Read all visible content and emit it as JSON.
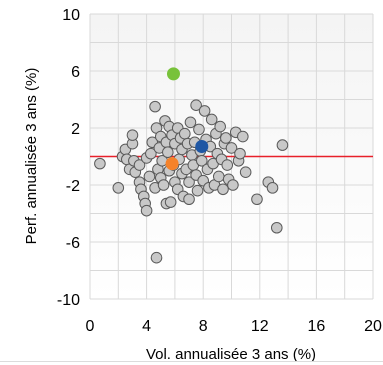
{
  "chart_data": {
    "type": "scatter",
    "title": "",
    "xlabel": "Vol. annualisée 3 ans (%)",
    "ylabel": "Perf. annualisée 3 ans (%)",
    "xlim": [
      0,
      20
    ],
    "ylim": [
      -10,
      10
    ],
    "xticks": [
      "0",
      "4",
      "8",
      "12",
      "16",
      "20"
    ],
    "yticks": [
      "10",
      "6",
      "2",
      "-2",
      "-6",
      "-10"
    ],
    "grid": true,
    "reference_line": {
      "y": 0,
      "color": "#e8202a"
    },
    "colors": {
      "peer": "#c8c8c8",
      "peer_stroke": "#5a5a5a",
      "highlight_green": "#78c23a",
      "highlight_blue": "#1f57a4",
      "highlight_orange": "#f5822a"
    },
    "series": [
      {
        "role": "peers",
        "points": [
          [
            0.7,
            -0.5
          ],
          [
            2.0,
            -2.2
          ],
          [
            2.3,
            0.0
          ],
          [
            2.5,
            0.5
          ],
          [
            2.6,
            -0.2
          ],
          [
            2.8,
            -0.9
          ],
          [
            3.0,
            0.9
          ],
          [
            3.0,
            1.5
          ],
          [
            3.1,
            -0.3
          ],
          [
            3.2,
            -1.1
          ],
          [
            3.5,
            -1.8
          ],
          [
            3.5,
            -0.6
          ],
          [
            3.6,
            -2.3
          ],
          [
            3.8,
            -2.8
          ],
          [
            3.9,
            -3.3
          ],
          [
            4.0,
            -3.8
          ],
          [
            4.0,
            -0.1
          ],
          [
            4.2,
            -1.4
          ],
          [
            4.3,
            0.2
          ],
          [
            4.4,
            1.0
          ],
          [
            4.6,
            3.5
          ],
          [
            4.6,
            -2.2
          ],
          [
            4.7,
            -7.1
          ],
          [
            4.7,
            2.0
          ],
          [
            4.8,
            -0.9
          ],
          [
            4.9,
            0.6
          ],
          [
            5.0,
            1.4
          ],
          [
            5.0,
            -1.5
          ],
          [
            5.1,
            -0.3
          ],
          [
            5.2,
            -2.0
          ],
          [
            5.3,
            2.5
          ],
          [
            5.4,
            1.0
          ],
          [
            5.4,
            -3.3
          ],
          [
            5.5,
            0.3
          ],
          [
            5.6,
            2.1
          ],
          [
            5.6,
            -1.0
          ],
          [
            5.7,
            -3.2
          ],
          [
            5.8,
            1.5
          ],
          [
            5.9,
            -0.6
          ],
          [
            6.0,
            0.9
          ],
          [
            6.0,
            -1.8
          ],
          [
            6.2,
            2.0
          ],
          [
            6.2,
            -2.3
          ],
          [
            6.3,
            -0.2
          ],
          [
            6.4,
            1.3
          ],
          [
            6.5,
            -1.2
          ],
          [
            6.5,
            0.5
          ],
          [
            6.6,
            -2.8
          ],
          [
            6.7,
            1.6
          ],
          [
            6.8,
            -0.9
          ],
          [
            6.9,
            0.9
          ],
          [
            7.0,
            -1.8
          ],
          [
            7.0,
            -3.0
          ],
          [
            7.1,
            2.4
          ],
          [
            7.2,
            0.1
          ],
          [
            7.3,
            -0.6
          ],
          [
            7.4,
            1.0
          ],
          [
            7.5,
            3.6
          ],
          [
            7.5,
            -1.3
          ],
          [
            7.6,
            -2.4
          ],
          [
            7.7,
            1.9
          ],
          [
            7.8,
            0.4
          ],
          [
            7.9,
            -0.3
          ],
          [
            8.0,
            -1.7
          ],
          [
            8.1,
            3.2
          ],
          [
            8.2,
            1.2
          ],
          [
            8.3,
            -0.9
          ],
          [
            8.4,
            -2.2
          ],
          [
            8.5,
            0.7
          ],
          [
            8.6,
            2.6
          ],
          [
            8.7,
            -0.5
          ],
          [
            8.8,
            -2.0
          ],
          [
            8.9,
            1.6
          ],
          [
            9.0,
            0.2
          ],
          [
            9.1,
            -1.4
          ],
          [
            9.2,
            2.1
          ],
          [
            9.3,
            -0.2
          ],
          [
            9.4,
            -2.3
          ],
          [
            9.5,
            0.9
          ],
          [
            9.6,
            1.3
          ],
          [
            9.7,
            -0.6
          ],
          [
            9.8,
            -1.6
          ],
          [
            10.0,
            0.6
          ],
          [
            10.1,
            -2.0
          ],
          [
            10.3,
            1.7
          ],
          [
            10.5,
            -0.3
          ],
          [
            10.6,
            0.2
          ],
          [
            10.8,
            1.4
          ],
          [
            11.0,
            -1.1
          ],
          [
            11.8,
            -3.0
          ],
          [
            12.6,
            -1.8
          ],
          [
            12.9,
            -2.2
          ],
          [
            13.2,
            -5.0
          ],
          [
            13.6,
            0.8
          ]
        ]
      },
      {
        "role": "highlight",
        "color_key": "highlight_green",
        "points": [
          [
            5.9,
            5.8
          ]
        ]
      },
      {
        "role": "highlight",
        "color_key": "highlight_blue",
        "points": [
          [
            7.9,
            0.7
          ]
        ]
      },
      {
        "role": "highlight",
        "color_key": "highlight_orange",
        "points": [
          [
            5.8,
            -0.5
          ]
        ]
      }
    ]
  }
}
